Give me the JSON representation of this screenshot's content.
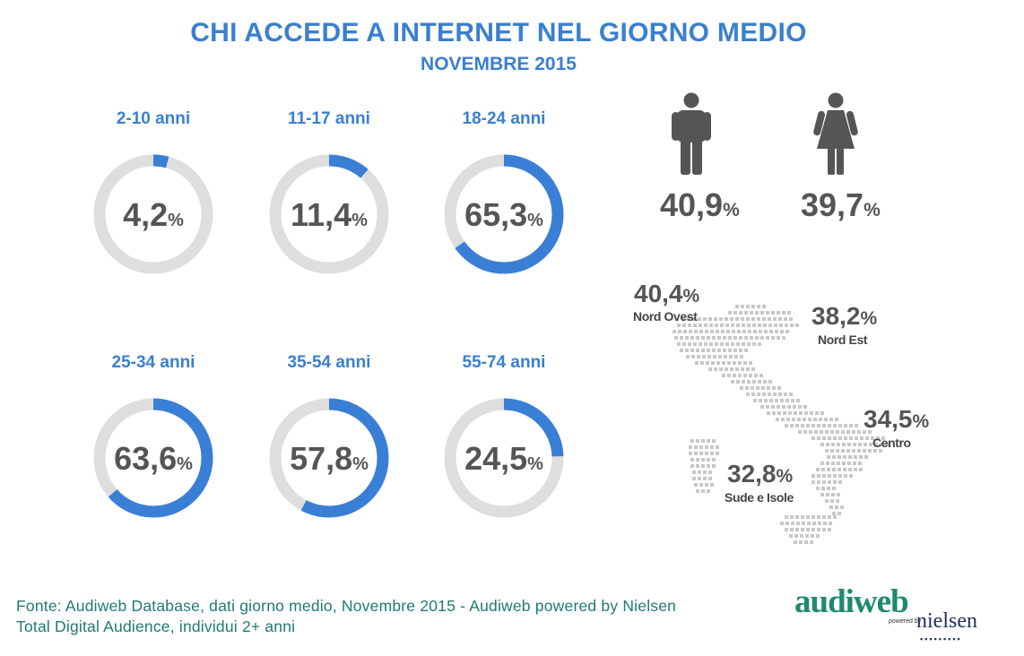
{
  "header": {
    "title": "CHI ACCEDE A INTERNET NEL GIORNO MEDIO",
    "subtitle": "NOVEMBRE 2015"
  },
  "chart_data": [
    {
      "type": "donut",
      "categories": [
        "2-10 anni",
        "11-17 anni",
        "18-24 anni",
        "25-34 anni",
        "35-54 anni",
        "55-74 anni"
      ],
      "values": [
        4.2,
        11.4,
        65.3,
        63.6,
        57.8,
        24.5
      ],
      "labels": [
        "4,2",
        "11,4",
        "65,3",
        "63,6",
        "57,8",
        "24,5"
      ],
      "unit": "%",
      "colors": {
        "filled": "#3a7fd6",
        "track": "#dedede",
        "text": "#555555"
      }
    },
    {
      "type": "icon-stat",
      "categories": [
        "uomini",
        "donne"
      ],
      "values": [
        40.9,
        39.7
      ],
      "labels": [
        "40,9",
        "39,7"
      ],
      "unit": "%",
      "icons": [
        "male-person-icon",
        "female-person-icon"
      ]
    },
    {
      "type": "map-stat",
      "categories": [
        "Nord Ovest",
        "Nord Est",
        "Centro",
        "Sude e Isole"
      ],
      "values": [
        40.4,
        38.2,
        34.5,
        32.8
      ],
      "labels": [
        "40,4",
        "38,2",
        "34,5",
        "32,8"
      ],
      "unit": "%",
      "icon": "italy-dotted-map-icon"
    }
  ],
  "footer": {
    "line1": "Fonte: Audiweb Database, dati giorno medio, Novembre 2015 - Audiweb powered by Nielsen",
    "line2": "Total Digital Audience, individui 2+ anni"
  },
  "logo": {
    "audiweb": "audiweb",
    "powered": "powered by",
    "nielsen": "nielsen"
  }
}
